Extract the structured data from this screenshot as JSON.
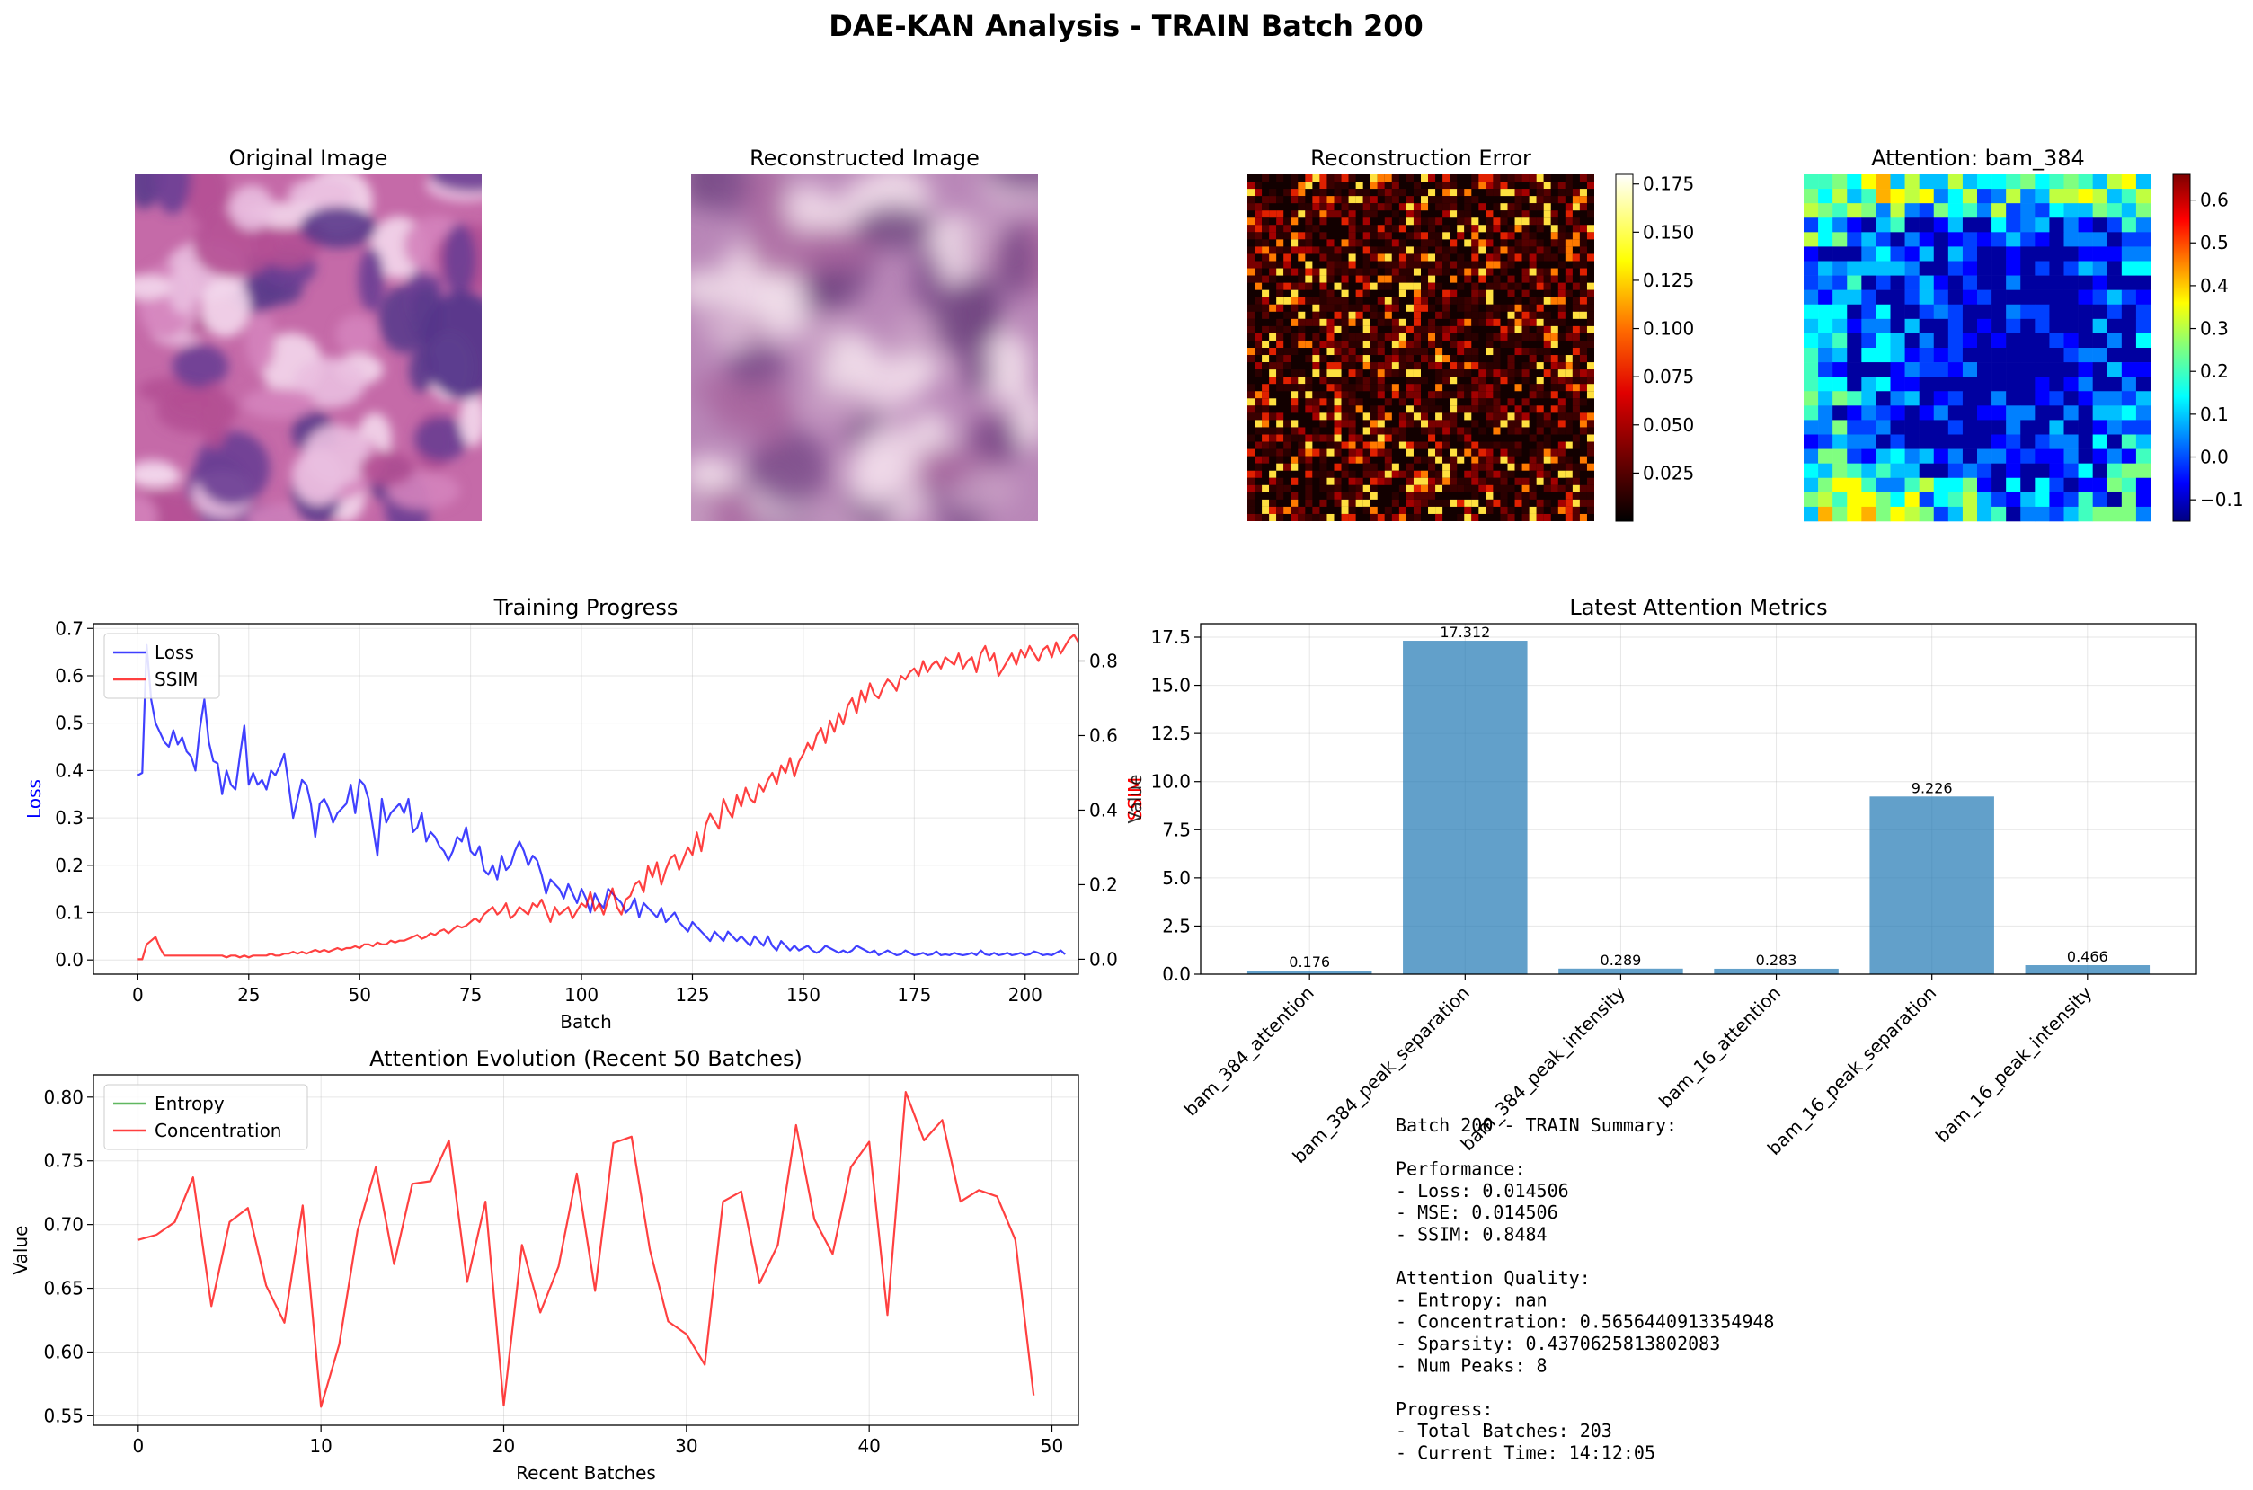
{
  "figure": {
    "suptitle": "DAE-KAN Analysis - TRAIN Batch 200"
  },
  "colors": {
    "loss": "#0000ff",
    "ssim": "#ff0000",
    "entropy": "#2ca02c",
    "concentration": "#ff0000",
    "bar": "#1f77b4",
    "grid": "#b0b0b0"
  },
  "panels": {
    "original": {
      "title": "Original Image",
      "colormap": "H&E stained tissue (pink/purple)"
    },
    "reconstructed": {
      "title": "Reconstructed Image",
      "colormap": "blurred purple/pink"
    },
    "error": {
      "title": "Reconstruction Error",
      "colormap": "hot",
      "colorbar": {
        "min": 0.0,
        "max": 0.18,
        "ticks": [
          0.025,
          0.05,
          0.075,
          0.1,
          0.125,
          0.15,
          0.175
        ],
        "tick_labels": [
          "0.025",
          "0.050",
          "0.075",
          "0.100",
          "0.125",
          "0.150",
          "0.175"
        ]
      }
    },
    "attention": {
      "title": "Attention: bam_384",
      "colormap": "jet",
      "grid": 24,
      "colorbar": {
        "min": -0.15,
        "max": 0.66,
        "ticks": [
          -0.1,
          0,
          0.1,
          0.2,
          0.3,
          0.4,
          0.5,
          0.6
        ],
        "tick_labels": [
          "−0.1",
          "0.0",
          "0.1",
          "0.2",
          "0.3",
          "0.4",
          "0.5",
          "0.6"
        ]
      }
    }
  },
  "chart_data": [
    {
      "id": "training-progress",
      "type": "line",
      "title": "Training Progress",
      "xlabel": "Batch",
      "ylabel": "Loss",
      "ylabel_right": "SSIM",
      "ylabel_right_overlap": "Value",
      "xlim": [
        -10,
        212
      ],
      "ylim": [
        -0.03,
        0.71
      ],
      "ylim_right": [
        -0.04,
        0.9
      ],
      "x_ticks": [
        0,
        25,
        50,
        75,
        100,
        125,
        150,
        175,
        200
      ],
      "y_ticks": [
        0.0,
        0.1,
        0.2,
        0.3,
        0.4,
        0.5,
        0.6,
        0.7
      ],
      "y_tick_labels": [
        "0.0",
        "0.1",
        "0.2",
        "0.3",
        "0.4",
        "0.5",
        "0.6",
        "0.7"
      ],
      "y_ticks_right": [
        0.0,
        0.2,
        0.4,
        0.6,
        0.8
      ],
      "y_tick_labels_right": [
        "0.0",
        "0.2",
        "0.4",
        "0.6",
        "0.8"
      ],
      "grid": true,
      "legend": "upper-left",
      "series": [
        {
          "name": "Loss",
          "axis": "left",
          "x_start": 0,
          "x_step": 1,
          "values": [
            0.39,
            0.395,
            0.665,
            0.55,
            0.5,
            0.48,
            0.46,
            0.45,
            0.485,
            0.455,
            0.47,
            0.44,
            0.43,
            0.4,
            0.49,
            0.55,
            0.46,
            0.42,
            0.415,
            0.35,
            0.4,
            0.37,
            0.36,
            0.43,
            0.495,
            0.37,
            0.395,
            0.37,
            0.38,
            0.36,
            0.4,
            0.39,
            0.41,
            0.435,
            0.37,
            0.3,
            0.34,
            0.38,
            0.37,
            0.33,
            0.26,
            0.33,
            0.34,
            0.32,
            0.29,
            0.31,
            0.32,
            0.33,
            0.37,
            0.31,
            0.38,
            0.37,
            0.34,
            0.28,
            0.22,
            0.34,
            0.29,
            0.31,
            0.32,
            0.33,
            0.31,
            0.34,
            0.27,
            0.28,
            0.31,
            0.25,
            0.27,
            0.26,
            0.24,
            0.23,
            0.21,
            0.23,
            0.26,
            0.25,
            0.28,
            0.23,
            0.22,
            0.24,
            0.19,
            0.18,
            0.2,
            0.17,
            0.22,
            0.19,
            0.2,
            0.23,
            0.25,
            0.23,
            0.2,
            0.22,
            0.21,
            0.18,
            0.14,
            0.17,
            0.16,
            0.15,
            0.13,
            0.16,
            0.14,
            0.12,
            0.15,
            0.13,
            0.1,
            0.14,
            0.12,
            0.11,
            0.15,
            0.14,
            0.13,
            0.12,
            0.1,
            0.11,
            0.13,
            0.09,
            0.12,
            0.11,
            0.1,
            0.09,
            0.11,
            0.08,
            0.09,
            0.1,
            0.08,
            0.07,
            0.06,
            0.08,
            0.07,
            0.06,
            0.05,
            0.04,
            0.06,
            0.05,
            0.04,
            0.06,
            0.05,
            0.04,
            0.05,
            0.04,
            0.03,
            0.05,
            0.04,
            0.03,
            0.05,
            0.03,
            0.02,
            0.04,
            0.03,
            0.02,
            0.03,
            0.02,
            0.025,
            0.03,
            0.02,
            0.015,
            0.02,
            0.03,
            0.025,
            0.02,
            0.015,
            0.02,
            0.015,
            0.02,
            0.03,
            0.025,
            0.02,
            0.015,
            0.02,
            0.01,
            0.015,
            0.02,
            0.015,
            0.01,
            0.012,
            0.02,
            0.015,
            0.01,
            0.012,
            0.015,
            0.01,
            0.012,
            0.018,
            0.01,
            0.012,
            0.01,
            0.015,
            0.012,
            0.01,
            0.012,
            0.015,
            0.01,
            0.02,
            0.012,
            0.01,
            0.015,
            0.01,
            0.012,
            0.015,
            0.01,
            0.012,
            0.015,
            0.01,
            0.012,
            0.018,
            0.015,
            0.01,
            0.012,
            0.01,
            0.015,
            0.02,
            0.012
          ]
        },
        {
          "name": "SSIM",
          "axis": "right",
          "x_start": 0,
          "x_step": 1,
          "values": [
            0.0,
            0.0,
            0.04,
            0.05,
            0.06,
            0.03,
            0.01,
            0.01,
            0.01,
            0.01,
            0.01,
            0.01,
            0.01,
            0.01,
            0.01,
            0.01,
            0.01,
            0.01,
            0.01,
            0.01,
            0.005,
            0.01,
            0.01,
            0.005,
            0.01,
            0.005,
            0.01,
            0.01,
            0.01,
            0.01,
            0.015,
            0.01,
            0.01,
            0.015,
            0.015,
            0.02,
            0.015,
            0.02,
            0.015,
            0.02,
            0.025,
            0.02,
            0.025,
            0.02,
            0.025,
            0.03,
            0.025,
            0.03,
            0.03,
            0.035,
            0.03,
            0.04,
            0.04,
            0.035,
            0.045,
            0.04,
            0.04,
            0.05,
            0.045,
            0.05,
            0.05,
            0.055,
            0.06,
            0.065,
            0.055,
            0.06,
            0.07,
            0.065,
            0.075,
            0.08,
            0.07,
            0.08,
            0.09,
            0.085,
            0.09,
            0.1,
            0.11,
            0.1,
            0.12,
            0.13,
            0.14,
            0.12,
            0.13,
            0.15,
            0.11,
            0.12,
            0.14,
            0.13,
            0.12,
            0.15,
            0.14,
            0.16,
            0.13,
            0.1,
            0.14,
            0.12,
            0.13,
            0.14,
            0.11,
            0.13,
            0.15,
            0.14,
            0.18,
            0.13,
            0.15,
            0.12,
            0.16,
            0.19,
            0.14,
            0.12,
            0.16,
            0.17,
            0.2,
            0.21,
            0.18,
            0.25,
            0.22,
            0.26,
            0.2,
            0.24,
            0.27,
            0.28,
            0.24,
            0.27,
            0.3,
            0.28,
            0.34,
            0.29,
            0.36,
            0.39,
            0.37,
            0.35,
            0.43,
            0.4,
            0.38,
            0.44,
            0.41,
            0.46,
            0.43,
            0.42,
            0.47,
            0.45,
            0.48,
            0.5,
            0.47,
            0.52,
            0.5,
            0.54,
            0.49,
            0.53,
            0.55,
            0.58,
            0.56,
            0.6,
            0.62,
            0.58,
            0.64,
            0.61,
            0.66,
            0.63,
            0.68,
            0.7,
            0.66,
            0.72,
            0.69,
            0.74,
            0.71,
            0.7,
            0.73,
            0.75,
            0.74,
            0.72,
            0.76,
            0.75,
            0.77,
            0.78,
            0.76,
            0.8,
            0.77,
            0.79,
            0.8,
            0.78,
            0.81,
            0.8,
            0.79,
            0.82,
            0.78,
            0.8,
            0.81,
            0.77,
            0.82,
            0.84,
            0.8,
            0.82,
            0.76,
            0.78,
            0.8,
            0.82,
            0.79,
            0.83,
            0.81,
            0.84,
            0.82,
            0.8,
            0.83,
            0.84,
            0.81,
            0.85,
            0.82,
            0.84,
            0.86,
            0.87,
            0.85
          ]
        }
      ]
    },
    {
      "id": "latest-attention-metrics",
      "type": "bar",
      "title": "Latest Attention Metrics",
      "ylabel": "Value",
      "categories": [
        "bam_384_attention",
        "bam_384_peak_separation",
        "bam_384_peak_intensity",
        "bam_16_attention",
        "bam_16_peak_separation",
        "bam_16_peak_intensity"
      ],
      "values": [
        0.176,
        17.312,
        0.289,
        0.283,
        9.226,
        0.466
      ],
      "data_labels": [
        "0.176",
        "17.312",
        "0.289",
        "0.283",
        "9.226",
        "0.466"
      ],
      "ylim": [
        0,
        18.2
      ],
      "y_ticks": [
        0.0,
        2.5,
        5.0,
        7.5,
        10.0,
        12.5,
        15.0,
        17.5
      ],
      "y_tick_labels": [
        "0.0",
        "2.5",
        "5.0",
        "7.5",
        "10.0",
        "12.5",
        "15.0",
        "17.5"
      ],
      "grid": true
    },
    {
      "id": "attention-evolution",
      "type": "line",
      "title": "Attention Evolution (Recent 50 Batches)",
      "xlabel": "Recent Batches",
      "ylabel": "Value",
      "xlim": [
        -2.45,
        51.45
      ],
      "ylim": [
        0.5425,
        0.8175
      ],
      "x_ticks": [
        0,
        10,
        20,
        30,
        40,
        50
      ],
      "y_ticks": [
        0.55,
        0.6,
        0.65,
        0.7,
        0.75,
        0.8
      ],
      "y_tick_labels": [
        "0.55",
        "0.60",
        "0.65",
        "0.70",
        "0.75",
        "0.80"
      ],
      "grid": true,
      "legend": "upper-left",
      "series": [
        {
          "name": "Entropy",
          "values": []
        },
        {
          "name": "Concentration",
          "x_start": 0,
          "x_step": 1,
          "values": [
            0.688,
            0.692,
            0.702,
            0.737,
            0.636,
            0.702,
            0.713,
            0.652,
            0.623,
            0.715,
            0.557,
            0.606,
            0.695,
            0.745,
            0.669,
            0.732,
            0.734,
            0.766,
            0.655,
            0.718,
            0.558,
            0.684,
            0.631,
            0.667,
            0.74,
            0.648,
            0.764,
            0.769,
            0.68,
            0.624,
            0.614,
            0.59,
            0.718,
            0.726,
            0.654,
            0.684,
            0.778,
            0.704,
            0.677,
            0.745,
            0.765,
            0.629,
            0.804,
            0.766,
            0.782,
            0.718,
            0.727,
            0.722,
            0.688,
            0.566
          ]
        }
      ]
    }
  ],
  "summary": {
    "lines": [
      "Batch 200 - TRAIN Summary:",
      "",
      "Performance:",
      "- Loss: 0.014506",
      "- MSE: 0.014506",
      "- SSIM: 0.8484",
      "",
      "Attention Quality:",
      "- Entropy: nan",
      "- Concentration: 0.5656440913354948",
      "- Sparsity: 0.4370625813802083",
      "- Num Peaks: 8",
      "",
      "Progress:",
      "- Total Batches: 203",
      "- Current Time: 14:12:05"
    ]
  }
}
